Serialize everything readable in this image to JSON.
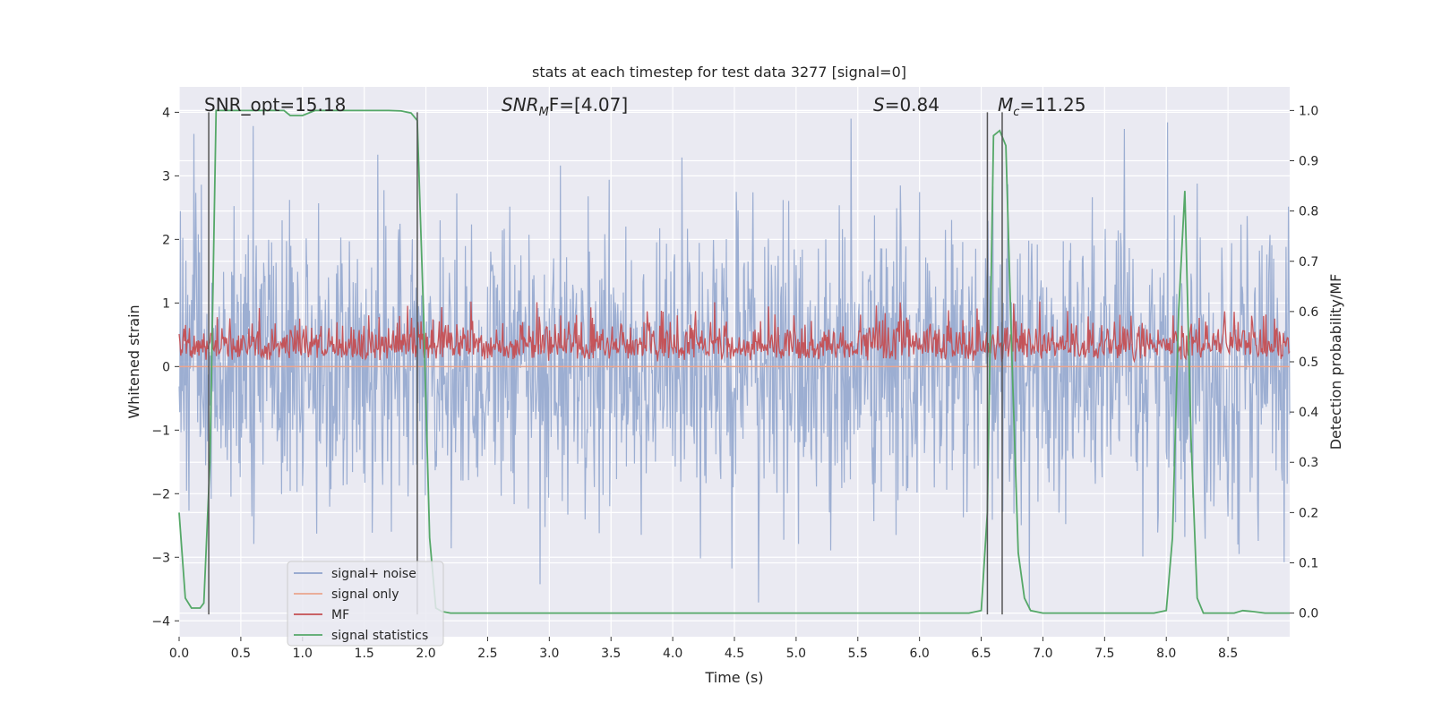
{
  "chart_data": {
    "type": "line",
    "title": "stats at each timestep for test data 3277 [signal=0]",
    "xlabel": "Time (s)",
    "ylabel": "Whitened strain",
    "ylabel_right": "Detection probability/MF",
    "xlim": [
      0,
      9.0
    ],
    "ylim": [
      -4.25,
      4.4
    ],
    "ylim_right": [
      -0.047,
      1.047
    ],
    "x_ticks": [
      0.0,
      0.5,
      1.0,
      1.5,
      2.0,
      2.5,
      3.0,
      3.5,
      4.0,
      4.5,
      5.0,
      5.5,
      6.0,
      6.5,
      7.0,
      7.5,
      8.0,
      8.5
    ],
    "x_tick_labels": [
      "0.0",
      "0.5",
      "1.0",
      "1.5",
      "2.0",
      "2.5",
      "3.0",
      "3.5",
      "4.0",
      "4.5",
      "5.0",
      "5.5",
      "6.0",
      "6.5",
      "7.0",
      "7.5",
      "8.0",
      "8.5"
    ],
    "y_ticks": [
      -4,
      -3,
      -2,
      -1,
      0,
      1,
      2,
      3,
      4
    ],
    "y_tick_labels": [
      "−4",
      "−3",
      "−2",
      "−1",
      "0",
      "1",
      "2",
      "3",
      "4"
    ],
    "y_ticks_right": [
      0.0,
      0.1,
      0.2,
      0.3,
      0.4,
      0.5,
      0.6,
      0.7,
      0.8,
      0.9,
      1.0
    ],
    "y_tick_labels_right": [
      "0.0",
      "0.1",
      "0.2",
      "0.3",
      "0.4",
      "0.5",
      "0.6",
      "0.7",
      "0.8",
      "0.9",
      "1.0"
    ],
    "annotations": {
      "snr_opt": "SNR_opt=15.18",
      "snr_mf_base": "SNR",
      "snr_mf_sub": "M",
      "snr_mf_rest": "F=[4.07]",
      "s_base": "S",
      "s_rest": "=0.84",
      "mc_base": "M",
      "mc_sub": "c",
      "mc_rest": "=11.25"
    },
    "vlines": [
      0.24,
      1.93,
      6.55,
      6.67
    ],
    "vline_range": [
      -3.9,
      4.0
    ],
    "legend": {
      "placement": "lower-left",
      "entries": [
        "signal+ noise",
        "signal only",
        "MF",
        "signal statistics"
      ]
    },
    "colors": {
      "noise": "#8ea3cc",
      "signal_only": "#eaa58d",
      "mf": "#c44e52",
      "stat": "#55a868",
      "vline": "#555555",
      "background": "#eaeaf2",
      "grid": "#ffffff"
    },
    "series": [
      {
        "name": "signal+ noise",
        "axis": "left",
        "kind": "noise",
        "n_samples": 1800,
        "center": 0.0,
        "std": 1.15,
        "max_abs": 3.9
      },
      {
        "name": "signal only",
        "axis": "left",
        "kind": "flat",
        "value": 0.0
      },
      {
        "name": "MF",
        "axis": "right",
        "kind": "noise",
        "n_samples": 1400,
        "baseline": 0.5,
        "typical_range": [
          0.5,
          0.6
        ],
        "max": 0.62
      },
      {
        "name": "signal statistics",
        "axis": "right",
        "kind": "curve",
        "x": [
          0.0,
          0.05,
          0.1,
          0.17,
          0.2,
          0.25,
          0.3,
          0.35,
          0.5,
          0.7,
          0.85,
          0.9,
          0.95,
          1.0,
          1.1,
          1.3,
          1.5,
          1.7,
          1.8,
          1.88,
          1.93,
          1.98,
          2.03,
          2.08,
          2.13,
          2.2,
          3.0,
          4.0,
          5.0,
          6.0,
          6.4,
          6.5,
          6.55,
          6.6,
          6.65,
          6.7,
          6.75,
          6.8,
          6.85,
          6.9,
          7.0,
          7.5,
          7.9,
          8.0,
          8.05,
          8.1,
          8.15,
          8.2,
          8.25,
          8.3,
          8.45,
          8.55,
          8.62,
          8.7,
          8.8,
          9.0
        ],
        "y": [
          0.2,
          0.03,
          0.01,
          0.01,
          0.02,
          0.3,
          1.0,
          1.0,
          1.0,
          1.0,
          1.0,
          0.99,
          0.99,
          0.99,
          1.0,
          1.0,
          1.0,
          1.0,
          0.999,
          0.995,
          0.98,
          0.6,
          0.15,
          0.01,
          0.003,
          0.0,
          0.0,
          0.0,
          0.0,
          0.0,
          0.0,
          0.005,
          0.2,
          0.95,
          0.96,
          0.93,
          0.5,
          0.12,
          0.03,
          0.005,
          0.0,
          0.0,
          0.0,
          0.005,
          0.15,
          0.6,
          0.84,
          0.35,
          0.03,
          0.0,
          0.0,
          0.0,
          0.005,
          0.003,
          0.0,
          0.0
        ]
      }
    ]
  }
}
